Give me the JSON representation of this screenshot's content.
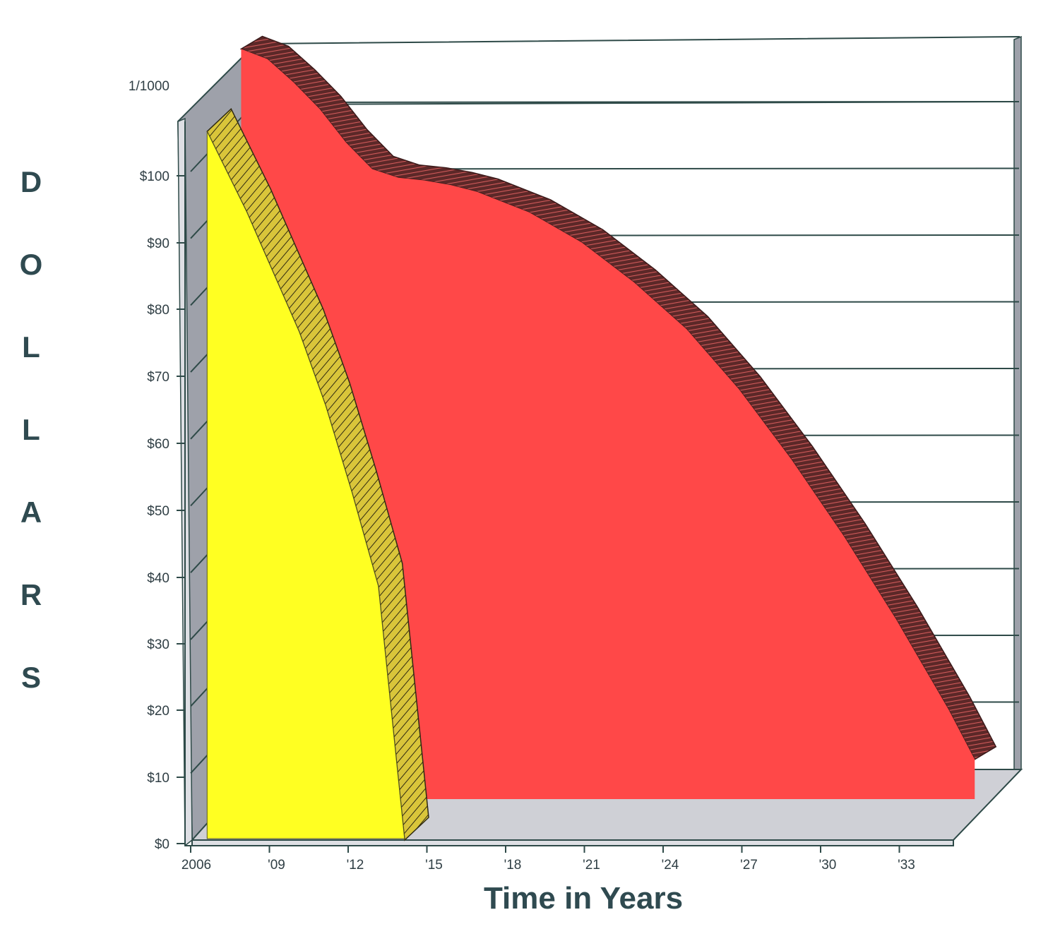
{
  "chart_data": {
    "type": "area",
    "title": "",
    "xlabel": "Time in Years",
    "ylabel": "DOLLARS",
    "x_ticks": [
      "2006",
      "'09",
      "'12",
      "'15",
      "'18",
      "'21",
      "'24",
      "'27",
      "'30",
      "'33"
    ],
    "y_ticks": [
      "$0",
      "$10",
      "$20",
      "$30",
      "$40",
      "$50",
      "$60",
      "$70",
      "$80",
      "$90",
      "$100",
      "1/1000"
    ],
    "ylim": [
      0,
      110
    ],
    "grid": true,
    "legend": "none",
    "three_d": true,
    "series": [
      {
        "color": "#ff4848",
        "x": [
          2007,
          2008,
          2009,
          2010,
          2011,
          2012,
          2013,
          2014,
          2015,
          2016,
          2018,
          2020,
          2022,
          2024,
          2026,
          2028,
          2030,
          2032,
          2034,
          2035
        ],
        "y": [
          108,
          106.5,
          103,
          99,
          94,
          90,
          88.7,
          88.3,
          87.6,
          86.6,
          83.5,
          79,
          73,
          66,
          57,
          46.5,
          35,
          22.5,
          9,
          1.5
        ]
      },
      {
        "color": "#ffff22",
        "x": [
          2006.5,
          2007,
          2008,
          2009,
          2010,
          2011,
          2012,
          2013,
          2014
        ],
        "y": [
          106,
          102,
          94,
          85,
          76,
          65,
          52,
          38,
          0
        ]
      }
    ]
  },
  "colors": {
    "red_front": "#ff4848",
    "red_side": "#8a3434",
    "yellow_front": "#ffff22",
    "yellow_side": "#c7b12e",
    "wall": "#9ea1aa",
    "floor": "#cfd0d6",
    "frame": "#2e4a48"
  }
}
